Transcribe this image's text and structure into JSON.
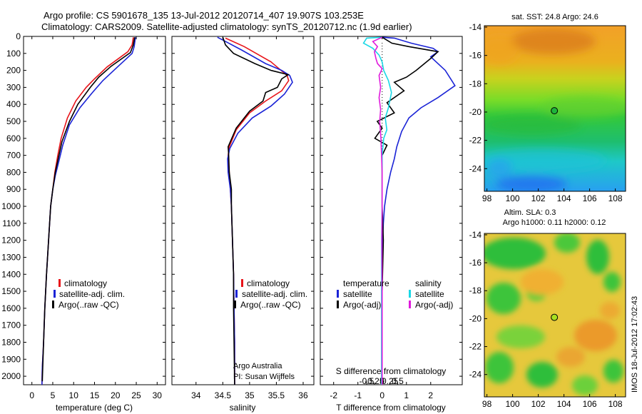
{
  "header": {
    "line1": "Argo profile: CS 5901678_135 13-Jul-2012 20120714_407 19.907S 103.253E",
    "line2": "Climatology: CARS2009. Satellite-adjusted climatology: synTS_20120712.nc (1.9d earlier)"
  },
  "colors": {
    "climatology": "#e8141a",
    "satellite": "#1a23d6",
    "argo": "#000000",
    "sal_satellite": "#1ad8e6",
    "sal_argo": "#e01adc"
  },
  "chart_data": [
    {
      "type": "line",
      "panel": "temperature",
      "xlabel": "temperature (deg C)",
      "ylim": [
        2050,
        0
      ],
      "xlim": [
        -2,
        32
      ],
      "xticks": [
        0,
        5,
        10,
        15,
        20,
        25,
        30
      ],
      "yticks": [
        0,
        100,
        200,
        300,
        400,
        500,
        600,
        700,
        800,
        900,
        1000,
        1100,
        1200,
        1300,
        1400,
        1500,
        1600,
        1700,
        1800,
        1900,
        2000
      ],
      "legend": [
        "climatology",
        "satellite-adj. clim.",
        "Argo(..raw -QC)"
      ],
      "series": [
        {
          "name": "climatology",
          "color_key": "climatology",
          "points": [
            [
              24.3,
              5
            ],
            [
              24.0,
              50
            ],
            [
              23.0,
              90
            ],
            [
              18.0,
              180
            ],
            [
              15.0,
              250
            ],
            [
              13.0,
              300
            ],
            [
              10.5,
              380
            ],
            [
              8.5,
              480
            ],
            [
              7.0,
              600
            ],
            [
              6.2,
              700
            ],
            [
              5.5,
              800
            ],
            [
              5.0,
              900
            ],
            [
              4.5,
              1000
            ],
            [
              4.0,
              1200
            ],
            [
              3.5,
              1400
            ],
            [
              3.1,
              1600
            ],
            [
              2.8,
              1800
            ],
            [
              2.5,
              1950
            ],
            [
              2.4,
              2050
            ]
          ]
        },
        {
          "name": "satellite-adj. clim.",
          "color_key": "satellite",
          "points": [
            [
              24.8,
              5
            ],
            [
              24.5,
              60
            ],
            [
              24.0,
              100
            ],
            [
              20.5,
              180
            ],
            [
              17.0,
              260
            ],
            [
              14.5,
              330
            ],
            [
              11.5,
              420
            ],
            [
              9.0,
              520
            ],
            [
              7.4,
              640
            ],
            [
              6.4,
              740
            ],
            [
              5.6,
              820
            ],
            [
              5.0,
              900
            ],
            [
              4.5,
              1000
            ],
            [
              4.0,
              1200
            ],
            [
              3.5,
              1400
            ],
            [
              3.1,
              1600
            ],
            [
              2.8,
              1800
            ],
            [
              2.5,
              1950
            ],
            [
              2.4,
              2050
            ]
          ]
        },
        {
          "name": "Argo(..raw -QC)",
          "color_key": "argo",
          "points": [
            [
              24.6,
              5
            ],
            [
              24.3,
              50
            ],
            [
              23.6,
              95
            ],
            [
              19.0,
              175
            ],
            [
              16.0,
              240
            ],
            [
              14.0,
              300
            ],
            [
              11.0,
              400
            ],
            [
              9.0,
              500
            ],
            [
              7.2,
              620
            ],
            [
              6.3,
              720
            ],
            [
              5.6,
              800
            ],
            [
              5.0,
              900
            ],
            [
              4.5,
              1000
            ],
            [
              4.0,
              1200
            ],
            [
              3.5,
              1400
            ],
            [
              3.1,
              1600
            ],
            [
              2.8,
              1800
            ],
            [
              2.6,
              1950
            ],
            [
              2.5,
              2030
            ]
          ]
        }
      ]
    },
    {
      "type": "line",
      "panel": "salinity",
      "xlabel": "salinity",
      "ylim": [
        2050,
        0
      ],
      "xlim": [
        33.55,
        36.2
      ],
      "xticks": [
        34,
        34.5,
        35,
        35.5,
        36
      ],
      "xtick_labels": [
        "34",
        "34.5",
        "35",
        "35.5",
        "36"
      ],
      "legend": [
        "climatology",
        "satellite-adj. clim.",
        "Argo(..raw -QC)"
      ],
      "annotation": [
        "Argo Australia",
        "PI: Susan Wijffels"
      ],
      "series": [
        {
          "name": "climatology",
          "color_key": "climatology",
          "points": [
            [
              34.55,
              10
            ],
            [
              34.9,
              60
            ],
            [
              35.4,
              150
            ],
            [
              35.7,
              230
            ],
            [
              35.73,
              260
            ],
            [
              35.6,
              320
            ],
            [
              35.3,
              380
            ],
            [
              35.0,
              450
            ],
            [
              34.75,
              550
            ],
            [
              34.62,
              650
            ],
            [
              34.6,
              700
            ],
            [
              34.62,
              800
            ],
            [
              34.64,
              900
            ],
            [
              34.66,
              1000
            ],
            [
              34.68,
              1200
            ],
            [
              34.7,
              1400
            ],
            [
              34.71,
              1600
            ],
            [
              34.72,
              1800
            ],
            [
              34.72,
              2050
            ]
          ]
        },
        {
          "name": "satellite-adj. clim.",
          "color_key": "satellite",
          "points": [
            [
              34.4,
              5
            ],
            [
              34.55,
              30
            ],
            [
              34.85,
              80
            ],
            [
              35.3,
              160
            ],
            [
              35.6,
              200
            ],
            [
              35.75,
              230
            ],
            [
              35.8,
              270
            ],
            [
              35.65,
              340
            ],
            [
              35.4,
              410
            ],
            [
              35.05,
              480
            ],
            [
              34.78,
              570
            ],
            [
              34.63,
              660
            ],
            [
              34.59,
              720
            ],
            [
              34.6,
              800
            ],
            [
              34.64,
              900
            ],
            [
              34.66,
              1000
            ],
            [
              34.68,
              1200
            ],
            [
              34.7,
              1400
            ],
            [
              34.71,
              1600
            ],
            [
              34.72,
              1800
            ],
            [
              34.72,
              2050
            ]
          ]
        },
        {
          "name": "Argo(..raw -QC)",
          "color_key": "argo",
          "points": [
            [
              34.5,
              5
            ],
            [
              34.55,
              50
            ],
            [
              34.7,
              100
            ],
            [
              35.1,
              160
            ],
            [
              35.4,
              200
            ],
            [
              35.72,
              225
            ],
            [
              35.6,
              250
            ],
            [
              35.52,
              300
            ],
            [
              35.3,
              330
            ],
            [
              35.25,
              380
            ],
            [
              35.0,
              440
            ],
            [
              34.75,
              540
            ],
            [
              34.6,
              650
            ],
            [
              34.61,
              700
            ],
            [
              34.62,
              800
            ],
            [
              34.66,
              900
            ],
            [
              34.66,
              1000
            ],
            [
              34.68,
              1200
            ],
            [
              34.7,
              1400
            ],
            [
              34.7,
              1600
            ],
            [
              34.71,
              1800
            ],
            [
              34.72,
              2050
            ]
          ]
        }
      ]
    },
    {
      "type": "line",
      "panel": "difference",
      "xlim": [
        -2.55,
        3.3
      ],
      "top_xlabel": "S difference from climatology",
      "top_xticks": [
        -0.5,
        -0.25,
        0,
        0.25,
        0.5
      ],
      "top_xtick_labels": [
        "-0.5",
        "-0.25",
        "0",
        "0.25",
        "0.5"
      ],
      "xlabel": "T difference from climatology",
      "xticks": [
        -2,
        -1,
        0,
        1,
        2
      ],
      "legend_temperature_title": "temperature",
      "legend_salinity_title": "salinity",
      "legend_temperature": [
        "satellite",
        "Argo(-adj)"
      ],
      "legend_salinity": [
        "satellite",
        "Argo(-adj)"
      ],
      "series": [
        {
          "name": "satellite",
          "color_key": "satellite",
          "quantity": "T",
          "points": [
            [
              0,
              5
            ],
            [
              0.5,
              10
            ],
            [
              1.2,
              40
            ],
            [
              2.1,
              70
            ],
            [
              2.3,
              90
            ],
            [
              2.0,
              120
            ],
            [
              2.6,
              200
            ],
            [
              3.0,
              290
            ],
            [
              2.3,
              360
            ],
            [
              1.6,
              420
            ],
            [
              1.1,
              480
            ],
            [
              0.8,
              560
            ],
            [
              0.6,
              650
            ],
            [
              0.5,
              720
            ],
            [
              0.35,
              800
            ],
            [
              0.2,
              900
            ],
            [
              0.1,
              1000
            ],
            [
              0.05,
              1100
            ],
            [
              0,
              1300
            ],
            [
              0,
              2050
            ]
          ]
        },
        {
          "name": "Argo(-adj)",
          "color_key": "argo",
          "quantity": "T",
          "points": [
            [
              0,
              5
            ],
            [
              0.4,
              40
            ],
            [
              1.1,
              60
            ],
            [
              2.3,
              90
            ],
            [
              2.0,
              130
            ],
            [
              1.4,
              200
            ],
            [
              1.0,
              240
            ],
            [
              0.5,
              270
            ],
            [
              0.9,
              320
            ],
            [
              0.2,
              390
            ],
            [
              0.5,
              450
            ],
            [
              -0.2,
              500
            ],
            [
              0,
              540
            ],
            [
              -0.3,
              600
            ],
            [
              0.2,
              640
            ],
            [
              0,
              700
            ],
            [
              0,
              800
            ],
            [
              0,
              1000
            ],
            [
              0.05,
              1200
            ],
            [
              0,
              1500
            ],
            [
              0,
              2050
            ]
          ]
        },
        {
          "name": "satellite",
          "color_key": "sal_satellite",
          "quantity": "S",
          "points": [
            [
              0,
              5
            ],
            [
              -0.5,
              10
            ],
            [
              -0.6,
              40
            ],
            [
              -0.3,
              70
            ],
            [
              -0.1,
              110
            ],
            [
              0,
              150
            ],
            [
              0.05,
              200
            ],
            [
              0.2,
              260
            ],
            [
              0.3,
              330
            ],
            [
              0.2,
              420
            ],
            [
              0.1,
              480
            ],
            [
              0.15,
              550
            ],
            [
              0.05,
              600
            ],
            [
              0,
              700
            ],
            [
              0,
              800
            ],
            [
              0,
              1000
            ],
            [
              -0.02,
              1200
            ],
            [
              -0.02,
              1500
            ],
            [
              -0.02,
              2050
            ]
          ]
        },
        {
          "name": "Argo(-adj)",
          "color_key": "sal_argo",
          "quantity": "S",
          "points": [
            [
              0,
              5
            ],
            [
              -0.3,
              30
            ],
            [
              -0.15,
              60
            ],
            [
              -0.25,
              90
            ],
            [
              -0.2,
              130
            ],
            [
              -0.15,
              160
            ],
            [
              0.0,
              190
            ],
            [
              -0.1,
              230
            ],
            [
              -0.05,
              300
            ],
            [
              -0.1,
              360
            ],
            [
              -0.05,
              430
            ],
            [
              -0.08,
              500
            ],
            [
              -0.04,
              600
            ],
            [
              -0.02,
              700
            ],
            [
              0,
              800
            ],
            [
              0,
              1000
            ],
            [
              -0.01,
              1200
            ],
            [
              0,
              1500
            ],
            [
              0,
              2050
            ]
          ]
        }
      ]
    },
    {
      "type": "heatmap",
      "panel": "map_sst",
      "title": "sat. SST: 24.8 Argo: 24.6",
      "xticks": [
        98,
        100,
        102,
        104,
        106,
        108
      ],
      "yticks": [
        -14,
        -16,
        -18,
        -20,
        -22,
        -24
      ],
      "ytick_labels": [
        "-14",
        "-16",
        "-18",
        "-20",
        "-22",
        "-24"
      ],
      "xlim": [
        97.8,
        108.8
      ],
      "ylim": [
        -25.6,
        -13.9
      ],
      "marker": {
        "lon": 103.253,
        "lat": -19.907
      }
    },
    {
      "type": "heatmap",
      "panel": "map_sla",
      "title": "Altim. SLA: 0.3",
      "subtitle": "Argo h1000: 0.11 h2000: 0.12",
      "xticks": [
        98,
        100,
        102,
        104,
        106,
        108
      ],
      "yticks": [
        -14,
        -16,
        -18,
        -20,
        -22,
        -24
      ],
      "ytick_labels": [
        "-14",
        "-16",
        "-18",
        "-20",
        "-22",
        "-24"
      ],
      "xlim": [
        97.8,
        108.8
      ],
      "ylim": [
        -25.6,
        -13.9
      ],
      "marker": {
        "lon": 103.253,
        "lat": -19.907
      }
    }
  ],
  "side_label": "IMOS 18-Jul-2012 17:02:43"
}
